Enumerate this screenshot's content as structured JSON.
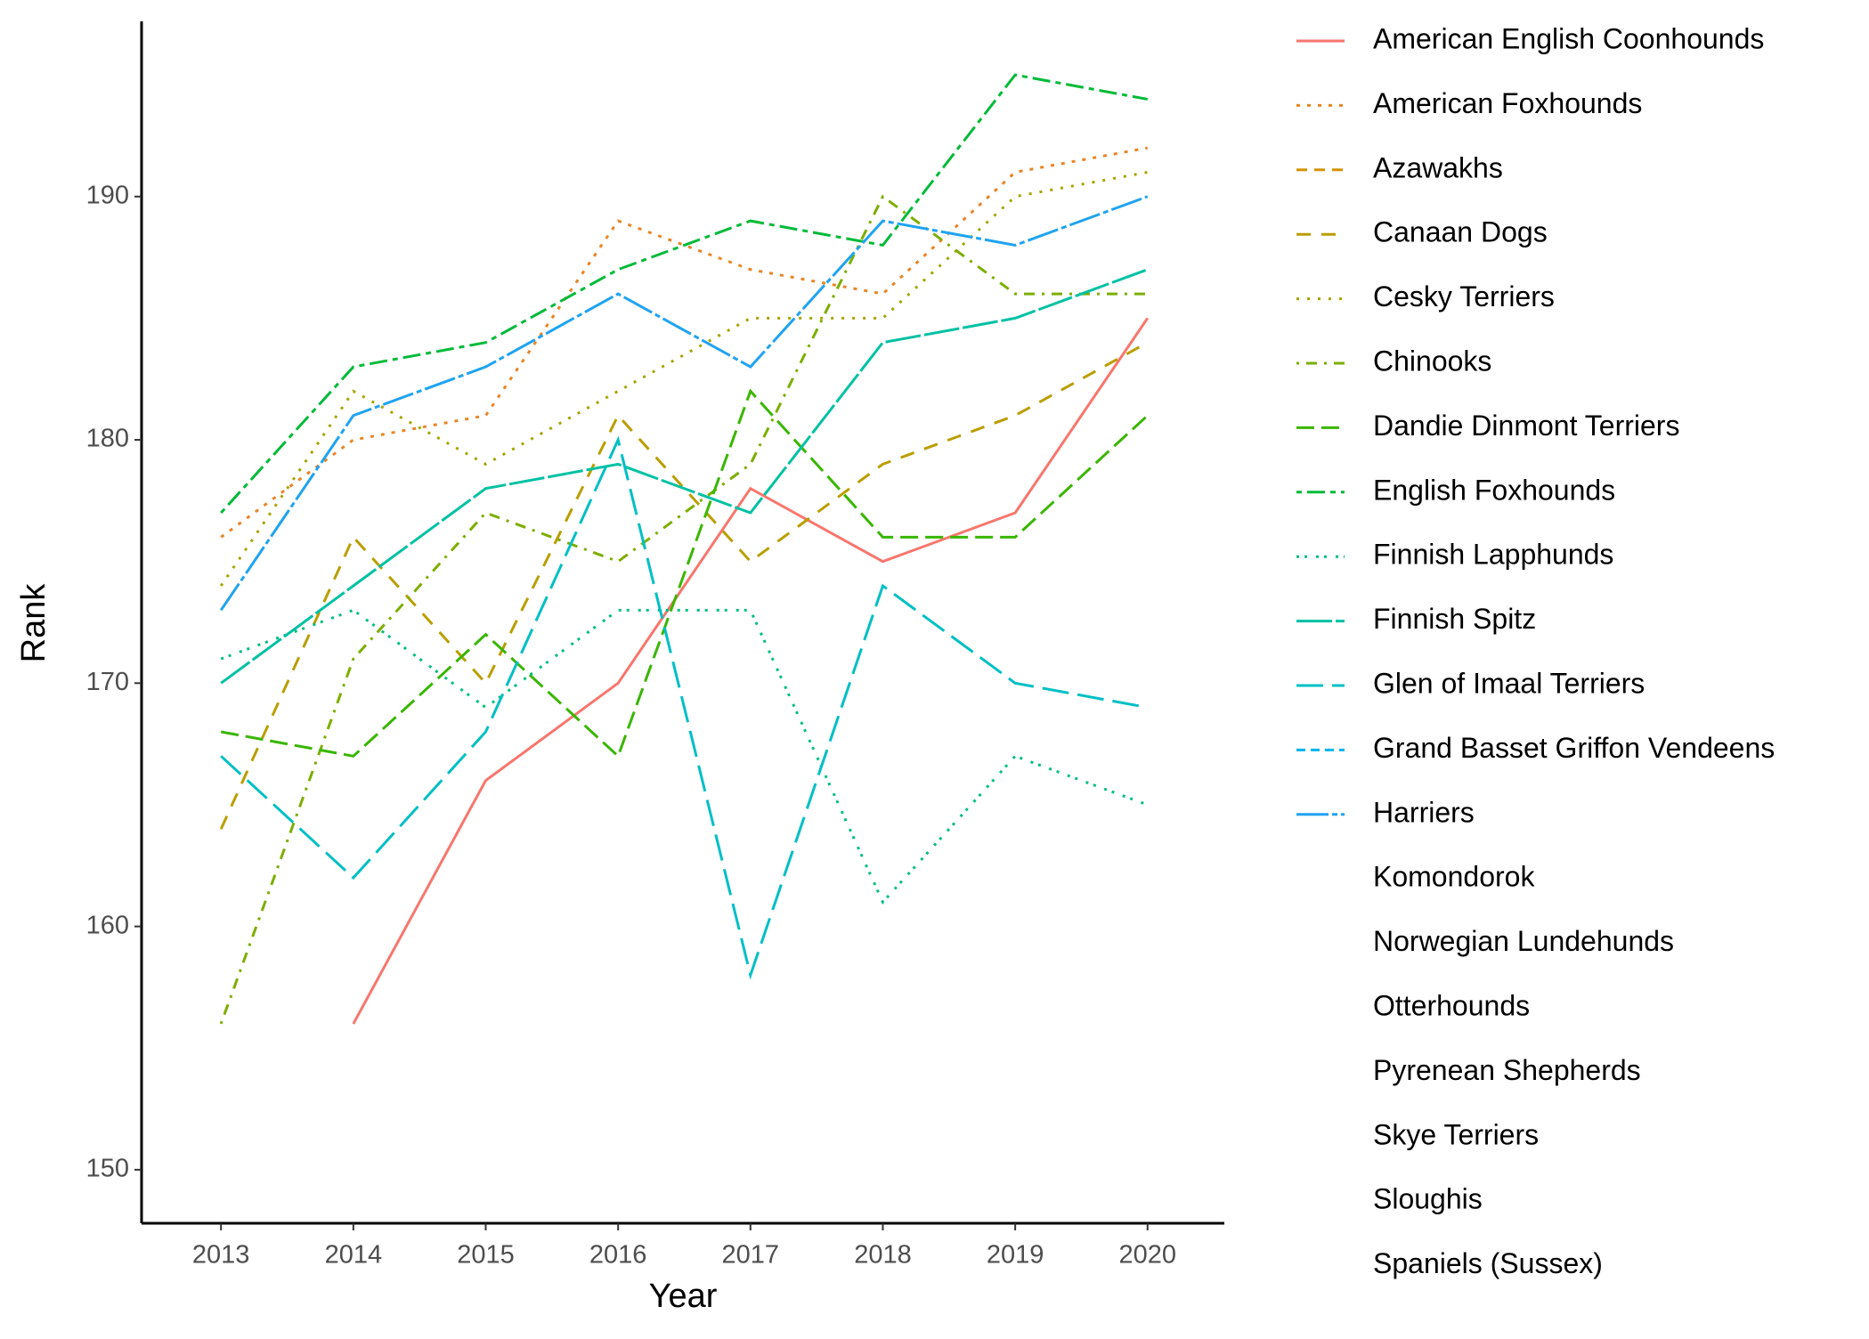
{
  "chart_data": {
    "type": "line",
    "x_label": "Year",
    "y_label": "Rank",
    "x": [
      2013,
      2014,
      2015,
      2016,
      2017,
      2018,
      2019,
      2020
    ],
    "xlim": [
      2012.4,
      2020.58
    ],
    "xticks": [
      2013,
      2014,
      2015,
      2016,
      2017,
      2018,
      2019,
      2020
    ],
    "ylim": [
      147.8,
      197.2
    ],
    "yticks": [
      150,
      160,
      170,
      180,
      190
    ],
    "grid": false,
    "legend": "right",
    "series": [
      {
        "name": "American English Coonhounds",
        "color": "#F8766D",
        "dash": "none",
        "values": [
          null,
          156,
          166,
          170,
          178,
          175,
          177,
          185
        ]
      },
      {
        "name": "American Foxhounds",
        "color": "#E88526",
        "dash": "4 8",
        "values": [
          176,
          180,
          181,
          189,
          187,
          186,
          191,
          192
        ]
      },
      {
        "name": "Azawakhs",
        "color": "#D39200",
        "dash": "12 8",
        "values": [
          null,
          null,
          null,
          null,
          null,
          null,
          null,
          null
        ]
      },
      {
        "name": "Canaan Dogs",
        "color": "#BA9E00",
        "dash": "16 12",
        "values": [
          164,
          176,
          170,
          181,
          175,
          179,
          181,
          184
        ]
      },
      {
        "name": "Cesky Terriers",
        "color": "#A3A500",
        "dash": "3 9",
        "values": [
          174,
          182,
          179,
          182,
          185,
          185,
          190,
          191
        ]
      },
      {
        "name": "Chinooks",
        "color": "#7CAE00",
        "dash": "3 8 12 8",
        "values": [
          156,
          171,
          177,
          175,
          179,
          190,
          186,
          186
        ]
      },
      {
        "name": "Dandie Dinmont Terriers",
        "color": "#39B600",
        "dash": "20 8",
        "values": [
          168,
          167,
          172,
          167,
          182,
          176,
          176,
          181
        ]
      },
      {
        "name": "English Foxhounds",
        "color": "#00BA38",
        "dash": "6 6 20 6",
        "values": [
          177,
          183,
          184,
          187,
          189,
          188,
          195,
          194
        ]
      },
      {
        "name": "Finnish Lapphunds",
        "color": "#00BF7D",
        "dash": "3 6 3 10",
        "values": [
          171,
          173,
          169,
          173,
          173,
          161,
          167,
          165
        ]
      },
      {
        "name": "Finnish Spitz",
        "color": "#00C1A3",
        "dash": "40 4",
        "values": [
          170,
          174,
          178,
          179,
          177,
          184,
          185,
          187
        ]
      },
      {
        "name": "Glen of Imaal Terriers",
        "color": "#00BFC4",
        "dash": "30 10",
        "values": [
          167,
          162,
          168,
          180,
          158,
          174,
          170,
          169
        ]
      },
      {
        "name": "Grand Basset Griffon Vendeens",
        "color": "#00B4EF",
        "dash": "10 6",
        "values": [
          null,
          null,
          null,
          null,
          null,
          null,
          null,
          null
        ]
      },
      {
        "name": "Harriers",
        "color": "#1FA3F0",
        "dash": "36 4 6 4",
        "values": [
          173,
          181,
          183,
          186,
          183,
          189,
          188,
          190
        ]
      },
      {
        "name": "Komondorok",
        "values": [
          null,
          null,
          null,
          null,
          null,
          null,
          null,
          null
        ]
      },
      {
        "name": "Norwegian Lundehunds",
        "values": [
          null,
          null,
          null,
          null,
          null,
          null,
          null,
          null
        ]
      },
      {
        "name": "Otterhounds",
        "values": [
          null,
          null,
          null,
          null,
          null,
          null,
          null,
          null
        ]
      },
      {
        "name": "Pyrenean Shepherds",
        "values": [
          null,
          null,
          null,
          null,
          null,
          null,
          null,
          null
        ]
      },
      {
        "name": "Skye Terriers",
        "values": [
          null,
          null,
          null,
          null,
          null,
          null,
          null,
          null
        ]
      },
      {
        "name": "Sloughis",
        "values": [
          null,
          null,
          null,
          null,
          null,
          null,
          null,
          null
        ]
      },
      {
        "name": "Spaniels (Sussex)",
        "values": [
          null,
          null,
          null,
          null,
          null,
          null,
          null,
          null
        ]
      }
    ]
  }
}
